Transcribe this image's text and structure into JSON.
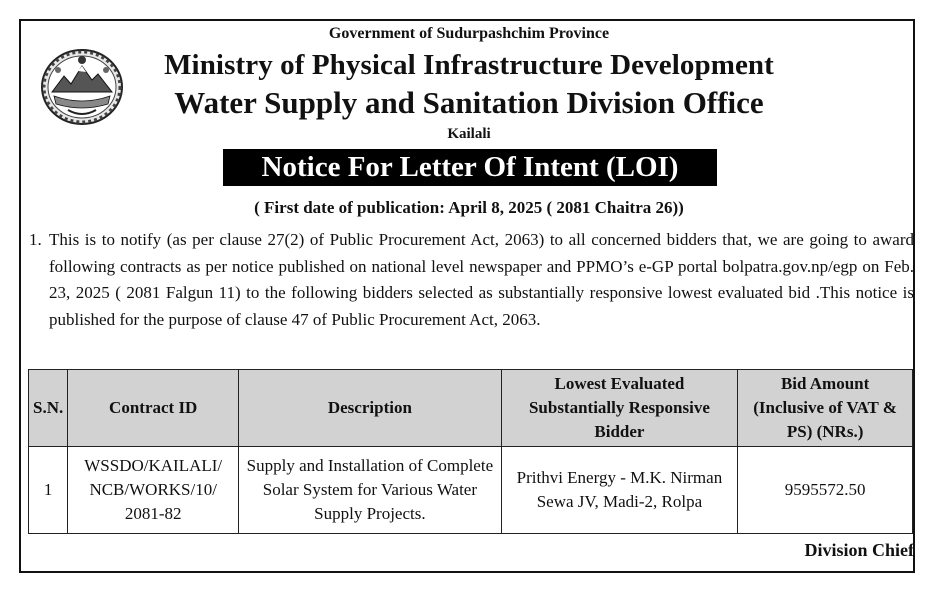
{
  "header": {
    "government": "Government of Sudurpashchim Province",
    "ministry": "Ministry of Physical Infrastructure Development",
    "office": "Water Supply and Sanitation Division Office",
    "district": "Kailali",
    "emblem_icon": "nepal-emblem-icon"
  },
  "notice": {
    "title": "Notice For Letter Of Intent (LOI)",
    "publication_date": "( First date of publication: April 8, 2025 ( 2081 Chaitra 26))",
    "paragraph_number": "1.",
    "paragraph_text": "This is to notify (as per clause 27(2) of Public Procurement Act, 2063) to all concerned bidders that, we are going to award following contracts as per notice published on national level newspaper and PPMO’s e-GP portal bolpatra.gov.np/egp on Feb. 23, 2025 ( 2081 Falgun 11) to the following bidders selected as substantially responsive lowest evaluated bid .This notice is published for the purpose of clause 47 of Public Procurement Act, 2063."
  },
  "table": {
    "headers": {
      "sn": "S.N.",
      "contract_id": "Contract ID",
      "description": "Description",
      "bidder": "Lowest Evaluated Substantially Responsive Bidder",
      "bid_amount": "Bid Amount (Inclusive of VAT & PS) (NRs.)"
    },
    "rows": [
      {
        "sn": "1",
        "contract_id": "WSSDO/KAILALI/ NCB/WORKS/10/ 2081-82",
        "description": "Supply and Installation of Complete Solar System for Various Water Supply Projects.",
        "bidder": "Prithvi Energy - M.K. Nirman Sewa JV, Madi-2, Rolpa",
        "bid_amount": "9595572.50"
      }
    ]
  },
  "footer": {
    "signature": "Division Chief"
  },
  "colors": {
    "text": "#111111",
    "title_background": "#000000",
    "title_text": "#ffffff",
    "header_cell_background": "#d2d2d2"
  }
}
